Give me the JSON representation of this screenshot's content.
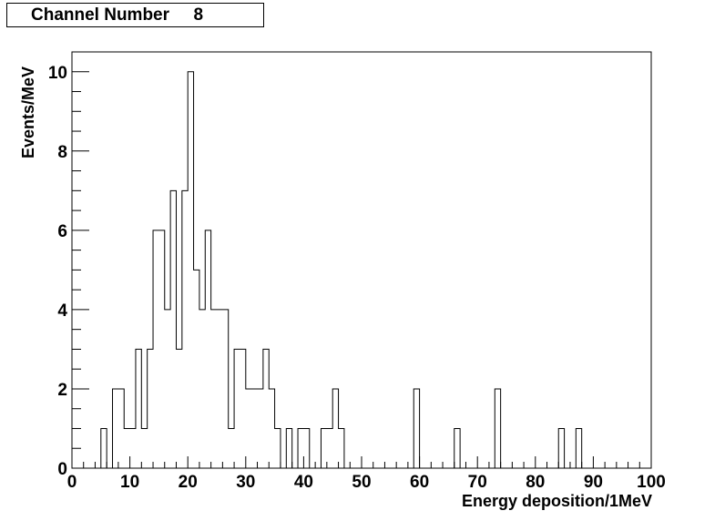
{
  "title": {
    "label": "Channel Number",
    "value": "8"
  },
  "chart_data": {
    "type": "bar",
    "histogram": true,
    "xlabel": "Energy deposition/1MeV",
    "ylabel": "Events/MeV",
    "xlim": [
      0,
      100
    ],
    "ylim": [
      0,
      10.5
    ],
    "x_ticks": [
      "0",
      "10",
      "20",
      "30",
      "40",
      "50",
      "60",
      "70",
      "80",
      "90",
      "100"
    ],
    "y_ticks": [
      "0",
      "2",
      "4",
      "6",
      "8",
      "10"
    ],
    "grid": false,
    "bin_width": 1,
    "x_start": 0,
    "values": [
      0,
      0,
      0,
      0,
      0,
      1,
      0,
      2,
      2,
      1,
      1,
      3,
      1,
      3,
      6,
      6,
      4,
      7,
      3,
      7,
      10,
      5,
      4,
      6,
      4,
      4,
      4,
      1,
      3,
      3,
      2,
      2,
      2,
      3,
      2,
      1,
      0,
      1,
      0,
      1,
      1,
      0,
      0,
      1,
      1,
      2,
      1,
      0,
      0,
      0,
      0,
      0,
      0,
      0,
      0,
      0,
      0,
      0,
      0,
      2,
      0,
      0,
      0,
      0,
      0,
      0,
      1,
      0,
      0,
      0,
      0,
      0,
      0,
      2,
      0,
      0,
      0,
      0,
      0,
      0,
      0,
      0,
      0,
      0,
      1,
      0,
      0,
      1,
      0,
      0,
      0,
      0,
      0,
      0,
      0,
      0,
      0,
      0,
      0,
      0
    ]
  }
}
